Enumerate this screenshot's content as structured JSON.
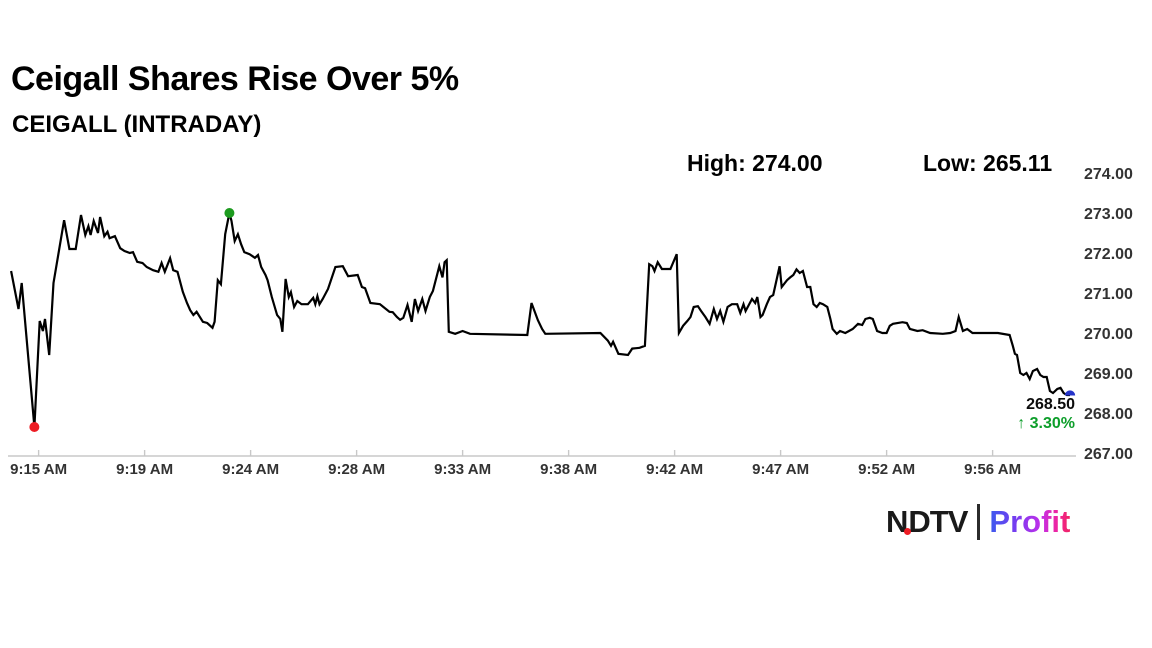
{
  "header": {
    "title": "Ceigall Shares Rise Over 5%",
    "subtitle": "CEIGALL (INTRADAY)"
  },
  "stats": {
    "high": "High: 274.00",
    "low": "Low: 265.11"
  },
  "last_quote": {
    "price": "268.50",
    "change": "↑ 3.30%",
    "change_color": "#0d9e2a"
  },
  "logo": {
    "ndtv_part1": "N",
    "ndtv_part2": "DTV",
    "profit": "Profit",
    "dot_color": "#ed1c24"
  },
  "chart_data": {
    "type": "line",
    "title": "CEIGALL (INTRADAY)",
    "line_color": "#000000",
    "axis_color": "#c8c8c8",
    "high": 274.0,
    "low": 265.11,
    "last": 268.5,
    "change_pct": 3.3,
    "y_range": [
      267,
      274
    ],
    "y_ticks": [
      "274.00",
      "273.00",
      "272.00",
      "271.00",
      "270.00",
      "269.00",
      "268.00",
      "267.00"
    ],
    "x_labels": [
      "9:15 AM",
      "9:19 AM",
      "9:24 AM",
      "9:28 AM",
      "9:33 AM",
      "9:38 AM",
      "9:42 AM",
      "9:47 AM",
      "9:52 AM",
      "9:56 AM"
    ],
    "markers": [
      {
        "name": "low-marker",
        "t": 0.023,
        "price": 267.7,
        "color": "#ed1c24",
        "shape": "circle"
      },
      {
        "name": "high-marker",
        "t": 0.207,
        "price": 273.05,
        "color": "#1d9b1f",
        "shape": "circle"
      },
      {
        "name": "last-marker",
        "t": 1.0,
        "price": 268.5,
        "color": "#2433c9",
        "shape": "dome"
      }
    ],
    "points": [
      [
        0.001,
        271.6
      ],
      [
        0.008,
        270.65
      ],
      [
        0.011,
        271.3
      ],
      [
        0.023,
        267.7
      ],
      [
        0.028,
        270.35
      ],
      [
        0.031,
        270.1
      ],
      [
        0.033,
        270.4
      ],
      [
        0.037,
        269.5
      ],
      [
        0.041,
        271.3
      ],
      [
        0.051,
        272.87
      ],
      [
        0.056,
        272.15
      ],
      [
        0.062,
        272.15
      ],
      [
        0.067,
        273.0
      ],
      [
        0.071,
        272.5
      ],
      [
        0.074,
        272.72
      ],
      [
        0.076,
        272.5
      ],
      [
        0.079,
        272.85
      ],
      [
        0.083,
        272.55
      ],
      [
        0.085,
        272.95
      ],
      [
        0.089,
        272.47
      ],
      [
        0.092,
        272.58
      ],
      [
        0.094,
        272.42
      ],
      [
        0.099,
        272.47
      ],
      [
        0.104,
        272.17
      ],
      [
        0.108,
        272.1
      ],
      [
        0.113,
        272.05
      ],
      [
        0.116,
        272.07
      ],
      [
        0.12,
        271.83
      ],
      [
        0.125,
        271.8
      ],
      [
        0.129,
        271.7
      ],
      [
        0.135,
        271.62
      ],
      [
        0.14,
        271.58
      ],
      [
        0.143,
        271.8
      ],
      [
        0.146,
        271.58
      ],
      [
        0.151,
        271.92
      ],
      [
        0.154,
        271.62
      ],
      [
        0.158,
        271.58
      ],
      [
        0.163,
        271.08
      ],
      [
        0.167,
        270.8
      ],
      [
        0.17,
        270.62
      ],
      [
        0.173,
        270.5
      ],
      [
        0.176,
        270.58
      ],
      [
        0.182,
        270.33
      ],
      [
        0.186,
        270.3
      ],
      [
        0.191,
        270.18
      ],
      [
        0.193,
        270.33
      ],
      [
        0.196,
        271.37
      ],
      [
        0.199,
        271.27
      ],
      [
        0.203,
        272.52
      ],
      [
        0.207,
        273.05
      ],
      [
        0.209,
        272.85
      ],
      [
        0.212,
        272.35
      ],
      [
        0.215,
        272.52
      ],
      [
        0.218,
        272.27
      ],
      [
        0.221,
        272.07
      ],
      [
        0.226,
        272.02
      ],
      [
        0.231,
        271.93
      ],
      [
        0.234,
        272.0
      ],
      [
        0.237,
        271.7
      ],
      [
        0.241,
        271.5
      ],
      [
        0.243,
        271.37
      ],
      [
        0.247,
        270.95
      ],
      [
        0.252,
        270.5
      ],
      [
        0.255,
        270.4
      ],
      [
        0.257,
        270.08
      ],
      [
        0.26,
        271.4
      ],
      [
        0.263,
        270.95
      ],
      [
        0.265,
        271.07
      ],
      [
        0.268,
        270.7
      ],
      [
        0.271,
        270.85
      ],
      [
        0.275,
        270.77
      ],
      [
        0.281,
        270.77
      ],
      [
        0.286,
        270.93
      ],
      [
        0.288,
        270.77
      ],
      [
        0.29,
        270.97
      ],
      [
        0.292,
        270.77
      ],
      [
        0.295,
        270.9
      ],
      [
        0.3,
        271.15
      ],
      [
        0.307,
        271.7
      ],
      [
        0.314,
        271.72
      ],
      [
        0.319,
        271.47
      ],
      [
        0.328,
        271.5
      ],
      [
        0.332,
        271.2
      ],
      [
        0.335,
        271.17
      ],
      [
        0.34,
        270.8
      ],
      [
        0.349,
        270.77
      ],
      [
        0.358,
        270.58
      ],
      [
        0.361,
        270.57
      ],
      [
        0.365,
        270.45
      ],
      [
        0.368,
        270.38
      ],
      [
        0.371,
        270.43
      ],
      [
        0.375,
        270.75
      ],
      [
        0.379,
        270.33
      ],
      [
        0.382,
        270.9
      ],
      [
        0.385,
        270.6
      ],
      [
        0.389,
        270.9
      ],
      [
        0.392,
        270.6
      ],
      [
        0.396,
        270.95
      ],
      [
        0.399,
        271.1
      ],
      [
        0.405,
        271.72
      ],
      [
        0.408,
        271.44
      ],
      [
        0.41,
        271.82
      ],
      [
        0.412,
        271.87
      ],
      [
        0.414,
        270.08
      ],
      [
        0.42,
        270.03
      ],
      [
        0.427,
        270.1
      ],
      [
        0.434,
        270.03
      ],
      [
        0.488,
        270.0
      ],
      [
        0.492,
        270.8
      ],
      [
        0.498,
        270.37
      ],
      [
        0.502,
        270.15
      ],
      [
        0.505,
        270.03
      ],
      [
        0.557,
        270.05
      ],
      [
        0.564,
        269.86
      ],
      [
        0.567,
        269.73
      ],
      [
        0.569,
        269.83
      ],
      [
        0.574,
        269.53
      ],
      [
        0.583,
        269.5
      ],
      [
        0.587,
        269.66
      ],
      [
        0.594,
        269.68
      ],
      [
        0.599,
        269.73
      ],
      [
        0.603,
        271.77
      ],
      [
        0.606,
        271.72
      ],
      [
        0.608,
        271.6
      ],
      [
        0.611,
        271.82
      ],
      [
        0.615,
        271.65
      ],
      [
        0.623,
        271.65
      ],
      [
        0.629,
        272.02
      ],
      [
        0.631,
        270.05
      ],
      [
        0.635,
        270.23
      ],
      [
        0.639,
        270.35
      ],
      [
        0.642,
        270.45
      ],
      [
        0.645,
        270.7
      ],
      [
        0.649,
        270.72
      ],
      [
        0.652,
        270.6
      ],
      [
        0.656,
        270.45
      ],
      [
        0.66,
        270.28
      ],
      [
        0.664,
        270.65
      ],
      [
        0.667,
        270.4
      ],
      [
        0.67,
        270.6
      ],
      [
        0.673,
        270.33
      ],
      [
        0.677,
        270.7
      ],
      [
        0.681,
        270.77
      ],
      [
        0.686,
        270.77
      ],
      [
        0.689,
        270.55
      ],
      [
        0.692,
        270.77
      ],
      [
        0.694,
        270.6
      ],
      [
        0.697,
        270.75
      ],
      [
        0.7,
        270.9
      ],
      [
        0.703,
        270.8
      ],
      [
        0.705,
        270.95
      ],
      [
        0.708,
        270.45
      ],
      [
        0.71,
        270.5
      ],
      [
        0.714,
        270.77
      ],
      [
        0.717,
        270.95
      ],
      [
        0.72,
        271.0
      ],
      [
        0.726,
        271.72
      ],
      [
        0.728,
        271.2
      ],
      [
        0.733,
        271.37
      ],
      [
        0.736,
        271.44
      ],
      [
        0.739,
        271.5
      ],
      [
        0.742,
        271.64
      ],
      [
        0.745,
        271.55
      ],
      [
        0.748,
        271.6
      ],
      [
        0.752,
        271.2
      ],
      [
        0.755,
        271.2
      ],
      [
        0.758,
        270.77
      ],
      [
        0.761,
        270.7
      ],
      [
        0.764,
        270.8
      ],
      [
        0.767,
        270.77
      ],
      [
        0.771,
        270.7
      ],
      [
        0.774,
        270.4
      ],
      [
        0.776,
        270.15
      ],
      [
        0.78,
        270.03
      ],
      [
        0.783,
        270.1
      ],
      [
        0.788,
        270.05
      ],
      [
        0.795,
        270.15
      ],
      [
        0.8,
        270.28
      ],
      [
        0.804,
        270.25
      ],
      [
        0.807,
        270.4
      ],
      [
        0.811,
        270.43
      ],
      [
        0.814,
        270.4
      ],
      [
        0.818,
        270.1
      ],
      [
        0.823,
        270.05
      ],
      [
        0.827,
        270.05
      ],
      [
        0.83,
        270.23
      ],
      [
        0.833,
        270.28
      ],
      [
        0.842,
        270.32
      ],
      [
        0.846,
        270.3
      ],
      [
        0.849,
        270.15
      ],
      [
        0.856,
        270.1
      ],
      [
        0.861,
        270.12
      ],
      [
        0.868,
        270.05
      ],
      [
        0.88,
        270.03
      ],
      [
        0.887,
        270.05
      ],
      [
        0.892,
        270.1
      ],
      [
        0.895,
        270.45
      ],
      [
        0.899,
        270.1
      ],
      [
        0.903,
        270.15
      ],
      [
        0.908,
        270.05
      ],
      [
        0.922,
        270.05
      ],
      [
        0.932,
        270.05
      ],
      [
        0.943,
        270.0
      ],
      [
        0.946,
        269.73
      ],
      [
        0.948,
        269.53
      ],
      [
        0.95,
        269.5
      ],
      [
        0.953,
        269.05
      ],
      [
        0.956,
        269.0
      ],
      [
        0.959,
        269.05
      ],
      [
        0.962,
        268.9
      ],
      [
        0.965,
        269.1
      ],
      [
        0.969,
        269.15
      ],
      [
        0.972,
        269.0
      ],
      [
        0.975,
        268.95
      ],
      [
        0.978,
        268.95
      ],
      [
        0.981,
        268.6
      ],
      [
        0.984,
        268.55
      ],
      [
        0.988,
        268.65
      ],
      [
        0.991,
        268.68
      ],
      [
        0.994,
        268.55
      ],
      [
        0.997,
        268.5
      ],
      [
        1.0,
        268.5
      ]
    ]
  }
}
